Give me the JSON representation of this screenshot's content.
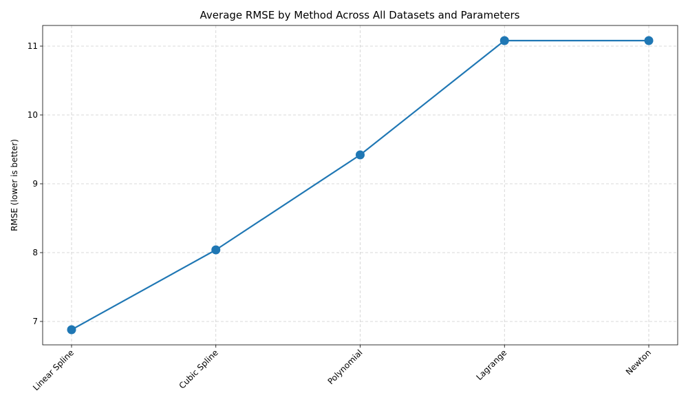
{
  "chart_data": {
    "type": "line",
    "title": "Average RMSE by Method Across All Datasets and Parameters",
    "xlabel": "",
    "ylabel": "RMSE (lower is better)",
    "categories": [
      "Linear Spline",
      "Cubic Spline",
      "Polynomial",
      "Lagrange",
      "Newton"
    ],
    "series": [
      {
        "values": [
          6.88,
          8.04,
          9.42,
          11.08,
          11.08
        ],
        "color": "#1f77b4"
      }
    ],
    "ylim": [
      6.66,
      11.3
    ],
    "yticks": [
      7,
      8,
      9,
      10,
      11
    ],
    "grid": true,
    "marker": "circle",
    "xtick_rotation_deg": 45
  }
}
